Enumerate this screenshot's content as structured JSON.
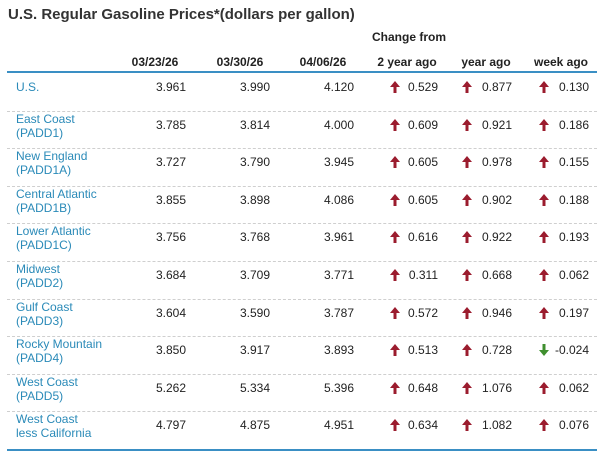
{
  "title": "U.S. Regular Gasoline Prices*(dollars per gallon)",
  "group_header": "Change from",
  "columns": [
    "03/23/26",
    "03/30/26",
    "04/06/26",
    "2 year ago",
    "year ago",
    "week ago"
  ],
  "rows": [
    {
      "name": [
        "U.S."
      ],
      "cells": [
        "3.961",
        "3.990",
        "4.120",
        "0.529",
        "0.877",
        "0.130"
      ]
    },
    {
      "name": [
        "East Coast",
        "(PADD1)"
      ],
      "cells": [
        "3.785",
        "3.814",
        "4.000",
        "0.609",
        "0.921",
        "0.186"
      ]
    },
    {
      "name": [
        "New England",
        "(PADD1A)"
      ],
      "cells": [
        "3.727",
        "3.790",
        "3.945",
        "0.605",
        "0.978",
        "0.155"
      ]
    },
    {
      "name": [
        "Central Atlantic",
        "(PADD1B)"
      ],
      "cells": [
        "3.855",
        "3.898",
        "4.086",
        "0.605",
        "0.902",
        "0.188"
      ]
    },
    {
      "name": [
        "Lower Atlantic",
        "(PADD1C)"
      ],
      "cells": [
        "3.756",
        "3.768",
        "3.961",
        "0.616",
        "0.922",
        "0.193"
      ]
    },
    {
      "name": [
        "Midwest",
        "(PADD2)"
      ],
      "cells": [
        "3.684",
        "3.709",
        "3.771",
        "0.311",
        "0.668",
        "0.062"
      ]
    },
    {
      "name": [
        "Gulf Coast",
        "(PADD3)"
      ],
      "cells": [
        "3.604",
        "3.590",
        "3.787",
        "0.572",
        "0.946",
        "0.197"
      ]
    },
    {
      "name": [
        "Rocky Mountain",
        "(PADD4)"
      ],
      "cells": [
        "3.850",
        "3.917",
        "3.893",
        "0.513",
        "0.728",
        "-0.024"
      ]
    },
    {
      "name": [
        "West Coast",
        "(PADD5)"
      ],
      "cells": [
        "5.262",
        "5.334",
        "5.396",
        "0.648",
        "1.076",
        "0.062"
      ]
    },
    {
      "name": [
        "West Coast",
        "less California"
      ],
      "cells": [
        "4.797",
        "4.875",
        "4.951",
        "0.634",
        "1.082",
        "0.076"
      ]
    }
  ]
}
